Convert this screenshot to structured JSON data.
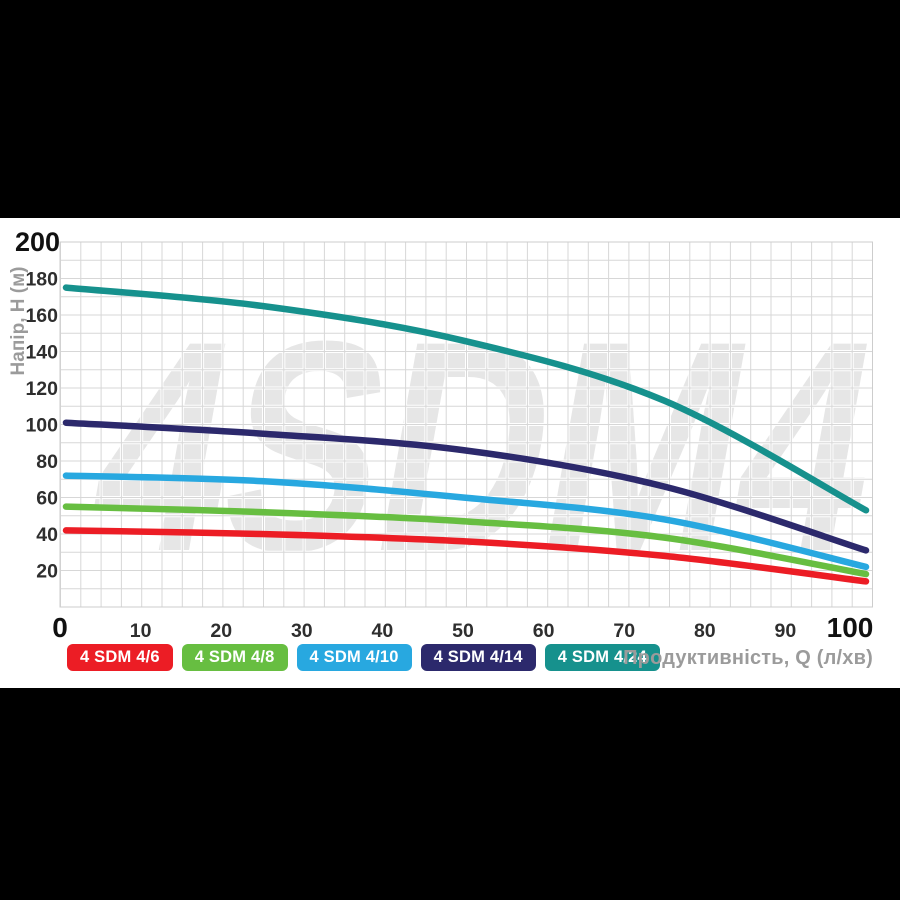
{
  "panel": {
    "background": "#ffffff",
    "letterbox_color": "#000000"
  },
  "chart_data": {
    "type": "line",
    "watermark": "4SDM4",
    "xlabel": "Продуктивність, Q (л/хв)",
    "ylabel": "Напір, H (м)",
    "xlim": [
      0,
      101
    ],
    "ylim": [
      0,
      200
    ],
    "x_ticks": [
      0,
      10,
      20,
      30,
      40,
      50,
      60,
      70,
      80,
      90,
      100
    ],
    "y_ticks": [
      0,
      20,
      40,
      60,
      80,
      100,
      120,
      140,
      160,
      180,
      200
    ],
    "grid": {
      "visible": true,
      "y_minor_step": 10,
      "style": "light-gray minor grid"
    },
    "legend_position": "bottom",
    "x": [
      0,
      25,
      50,
      75,
      100
    ],
    "series": [
      {
        "name": "4 SDM 4/6",
        "color": "#ec1d25",
        "values": [
          42,
          40,
          36,
          28,
          14
        ]
      },
      {
        "name": "4 SDM 4/8",
        "color": "#67be41",
        "values": [
          55,
          52,
          47,
          38,
          18
        ]
      },
      {
        "name": "4 SDM 4/10",
        "color": "#28a8e0",
        "values": [
          72,
          69,
          60,
          48,
          22
        ]
      },
      {
        "name": "4 SDM 4/14",
        "color": "#2c296c",
        "values": [
          101,
          95,
          86,
          66,
          31
        ]
      },
      {
        "name": "4 SDM 4/24",
        "color": "#16918d",
        "values": [
          175,
          165,
          146,
          113,
          53
        ]
      }
    ],
    "colors": {
      "tick_label": "#2e2e2e",
      "bold_tick_label": "#111111",
      "axis_title": "#9b9b9b",
      "gridline": "#d7d7d7",
      "watermark": "#e6e6e6"
    }
  }
}
